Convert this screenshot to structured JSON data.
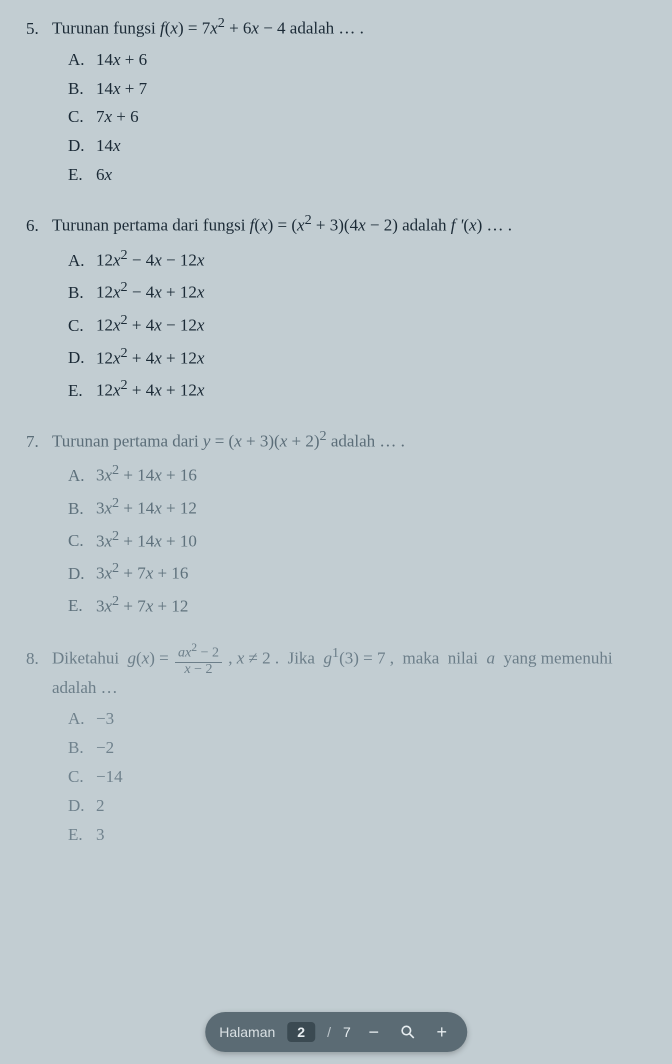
{
  "questions": [
    {
      "num": "5.",
      "stem_html": "Turunan fungsi <i>f</i>(<i>x</i>) = 7<i>x</i><sup>2</sup> + 6<i>x</i> − 4 adalah … .",
      "faded": "",
      "choices": [
        {
          "label": "A.",
          "text_html": "14<i>x</i> + 6"
        },
        {
          "label": "B.",
          "text_html": "14<i>x</i> + 7"
        },
        {
          "label": "C.",
          "text_html": "7<i>x</i> + 6"
        },
        {
          "label": "D.",
          "text_html": "14<i>x</i>"
        },
        {
          "label": "E.",
          "text_html": "6<i>x</i>"
        }
      ]
    },
    {
      "num": "6.",
      "stem_html": "Turunan pertama dari fungsi <i>f</i>(<i>x</i>) = (<i>x</i><sup>2</sup> + 3)(4<i>x</i> − 2) adalah <i>f '</i>(<i>x</i>) … .",
      "faded": "",
      "choices": [
        {
          "label": "A.",
          "text_html": "12<i>x</i><sup>2</sup> − 4<i>x</i> − 12<i>x</i>"
        },
        {
          "label": "B.",
          "text_html": "12<i>x</i><sup>2</sup> − 4<i>x</i> + 12<i>x</i>"
        },
        {
          "label": "C.",
          "text_html": "12<i>x</i><sup>2</sup> + 4<i>x</i> − 12<i>x</i>"
        },
        {
          "label": "D.",
          "text_html": "12<i>x</i><sup>2</sup> + 4<i>x</i> + 12<i>x</i>"
        },
        {
          "label": "E.",
          "text_html": "12<i>x</i><sup>2</sup> + 4<i>x</i> + 12<i>x</i>"
        }
      ]
    },
    {
      "num": "7.",
      "stem_html": "Turunan pertama dari <i>y</i> = (<i>x</i> + 3)(<i>x</i> + 2)<sup>2</sup> adalah … .",
      "faded": "faded",
      "choices": [
        {
          "label": "A.",
          "text_html": "3<i>x</i><sup>2</sup> + 14<i>x</i> + 16"
        },
        {
          "label": "B.",
          "text_html": "3<i>x</i><sup>2</sup> + 14<i>x</i> + 12"
        },
        {
          "label": "C.",
          "text_html": "3<i>x</i><sup>2</sup> + 14<i>x</i> + 10"
        },
        {
          "label": "D.",
          "text_html": "3<i>x</i><sup>2</sup> + 7<i>x</i> + 16"
        },
        {
          "label": "E.",
          "text_html": "3<i>x</i><sup>2</sup> + 7<i>x</i> + 12"
        }
      ]
    },
    {
      "num": "8.",
      "stem_html": "Diketahui&nbsp; <i>g</i>(<i>x</i>) = <span class=\"frac\"><span class=\"num\"><i>a</i><i>x</i><sup>2</sup> − 2</span><span class=\"den\"><i>x</i> − 2</span></span> , <i>x</i> ≠ 2 . &nbsp;Jika&nbsp; <i>g</i><sup>1</sup>(3) = 7 , &nbsp;maka&nbsp; nilai&nbsp; <i>a</i>&nbsp; yang memenuhi adalah …",
      "faded": "faded2",
      "choices": [
        {
          "label": "A.",
          "text_html": "−3"
        },
        {
          "label": "B.",
          "text_html": "−2"
        },
        {
          "label": "C.",
          "text_html": "−14"
        },
        {
          "label": "D.",
          "text_html": "2"
        },
        {
          "label": "E.",
          "text_html": "3"
        }
      ]
    }
  ],
  "toolbar": {
    "label": "Halaman",
    "current": "2",
    "sep": "/",
    "total": "7",
    "minus": "−",
    "zoom": "⚲",
    "plus": "+"
  }
}
